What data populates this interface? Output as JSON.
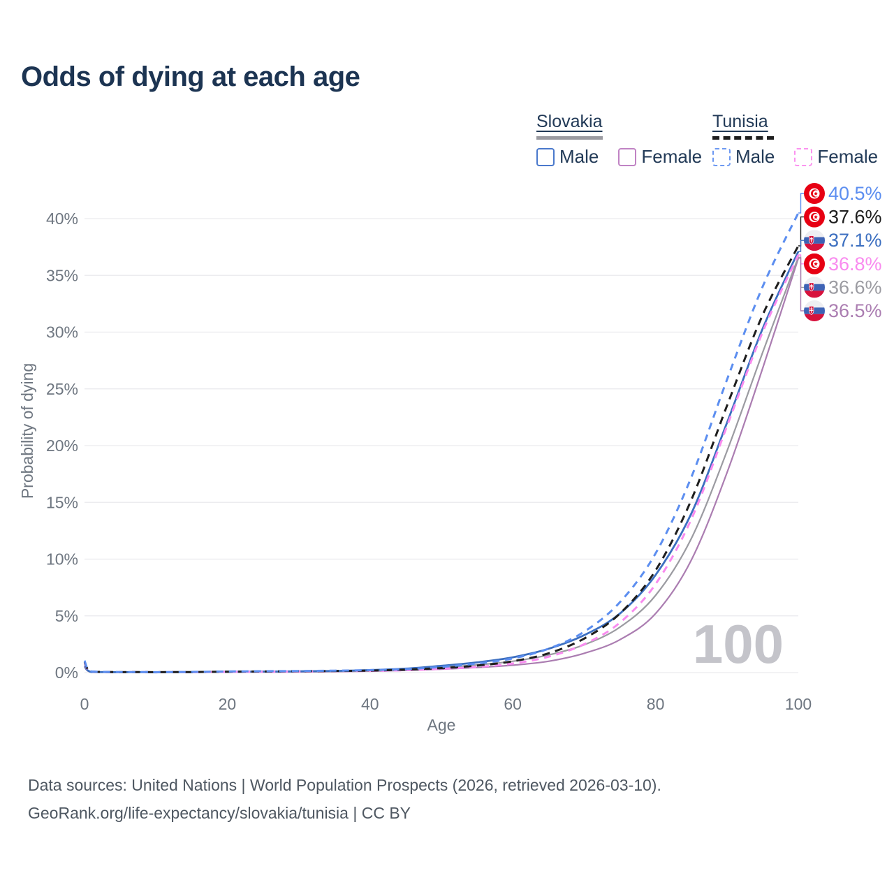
{
  "header": {
    "title": "Odds of dying at each age"
  },
  "legend": {
    "slovakia": {
      "label": "Slovakia",
      "male_label": "Male",
      "female_label": "Female",
      "line_color": "#9b9ba1",
      "male_color": "#4a79cc",
      "female_color": "#c083c4",
      "line_style": "solid"
    },
    "tunisia": {
      "label": "Tunisia",
      "male_label": "Male",
      "female_label": "Female",
      "line_color": "#1e1e1e",
      "male_color": "#6d99f2",
      "female_color": "#fb93f0",
      "line_style": "dashed"
    }
  },
  "chart_data": {
    "type": "line",
    "title": "Odds of dying at each age",
    "xlabel": "Age",
    "ylabel": "Probability of dying",
    "watermark": "100",
    "xlim": [
      0,
      100
    ],
    "ylim_pct": [
      0,
      43
    ],
    "grid": "horizontal",
    "x_ticks": [
      {
        "label": "0",
        "value": 0
      },
      {
        "label": "20",
        "value": 20
      },
      {
        "label": "40",
        "value": 40
      },
      {
        "label": "60",
        "value": 60
      },
      {
        "label": "80",
        "value": 80
      },
      {
        "label": "100",
        "value": 100
      }
    ],
    "y_ticks": [
      {
        "label": "0%",
        "value": 0
      },
      {
        "label": "5%",
        "value": 5
      },
      {
        "label": "10%",
        "value": 10
      },
      {
        "label": "15%",
        "value": 15
      },
      {
        "label": "20%",
        "value": 20
      },
      {
        "label": "25%",
        "value": 25
      },
      {
        "label": "30%",
        "value": 30
      },
      {
        "label": "35%",
        "value": 35
      },
      {
        "label": "40%",
        "value": 40
      }
    ],
    "ages": [
      0,
      1,
      5,
      10,
      15,
      20,
      25,
      30,
      35,
      40,
      45,
      50,
      55,
      60,
      65,
      70,
      75,
      80,
      85,
      90,
      95,
      100
    ],
    "series": [
      {
        "name": "Slovakia Female",
        "country": "slovakia",
        "sex": "female",
        "line_style": "solid",
        "color": "#ab7db1",
        "end_label": "36.5%",
        "values_pct": [
          0.5,
          0.04,
          0.02,
          0.02,
          0.03,
          0.04,
          0.05,
          0.06,
          0.09,
          0.13,
          0.2,
          0.3,
          0.45,
          0.65,
          1.0,
          1.7,
          2.9,
          5.2,
          9.9,
          17.6,
          26.8,
          36.5
        ]
      },
      {
        "name": "Slovakia",
        "country": "slovakia",
        "sex": "all",
        "line_style": "solid",
        "color": "#9b9ba1",
        "end_label": "36.6%",
        "values_pct": [
          0.55,
          0.05,
          0.02,
          0.02,
          0.03,
          0.06,
          0.07,
          0.09,
          0.12,
          0.17,
          0.27,
          0.45,
          0.68,
          1.0,
          1.55,
          2.45,
          4.0,
          6.8,
          11.8,
          19.5,
          28.2,
          36.6
        ]
      },
      {
        "name": "Slovakia Male",
        "country": "slovakia",
        "sex": "male",
        "line_style": "solid",
        "color": "#3c6fc0",
        "end_label": "37.1%",
        "values_pct": [
          0.6,
          0.05,
          0.03,
          0.02,
          0.04,
          0.08,
          0.09,
          0.11,
          0.15,
          0.22,
          0.35,
          0.6,
          0.9,
          1.35,
          2.1,
          3.3,
          5.2,
          8.6,
          14.0,
          22.0,
          30.3,
          37.1
        ]
      },
      {
        "name": "Tunisia Female",
        "country": "tunisia",
        "sex": "female",
        "line_style": "dashed",
        "color": "#f98bef",
        "end_label": "36.8%",
        "values_pct": [
          0.85,
          0.08,
          0.04,
          0.03,
          0.04,
          0.06,
          0.07,
          0.09,
          0.12,
          0.15,
          0.21,
          0.33,
          0.5,
          0.8,
          1.4,
          2.5,
          4.4,
          7.8,
          13.5,
          21.7,
          30.0,
          36.8
        ]
      },
      {
        "name": "Tunisia",
        "country": "tunisia",
        "sex": "all",
        "line_style": "dashed",
        "color": "#1e1e1e",
        "end_label": "37.6%",
        "values_pct": [
          0.95,
          0.09,
          0.04,
          0.04,
          0.05,
          0.08,
          0.1,
          0.12,
          0.14,
          0.18,
          0.26,
          0.4,
          0.62,
          1.0,
          1.7,
          3.0,
          5.2,
          9.0,
          15.2,
          23.5,
          31.5,
          37.6
        ]
      },
      {
        "name": "Tunisia Male",
        "country": "tunisia",
        "sex": "male",
        "line_style": "dashed",
        "color": "#5c8ef0",
        "end_label": "40.5%",
        "values_pct": [
          1.05,
          0.1,
          0.05,
          0.04,
          0.06,
          0.1,
          0.12,
          0.14,
          0.17,
          0.22,
          0.31,
          0.5,
          0.8,
          1.25,
          2.1,
          3.6,
          6.2,
          10.5,
          17.2,
          25.8,
          34.0,
          40.5
        ]
      }
    ]
  },
  "footer": {
    "line1": "Data sources: United Nations | World Population Prospects (2026, retrieved 2026-03-10).",
    "line2": "GeoRank.org/life-expectancy/slovakia/tunisia | CC BY"
  }
}
